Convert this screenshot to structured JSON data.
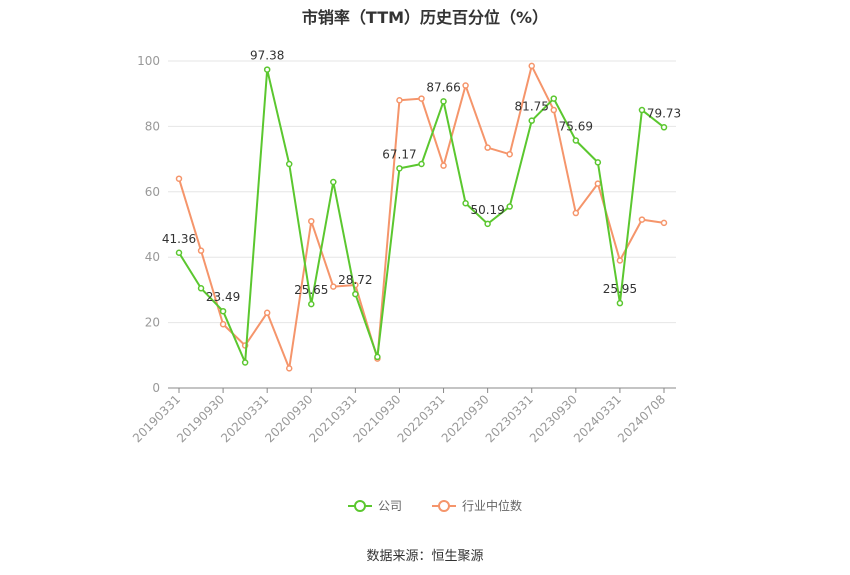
{
  "chart_data": {
    "type": "line",
    "title": "市销率（TTM）历史百分位（%）",
    "source": "数据来源：恒生聚源",
    "ylim": [
      0,
      100
    ],
    "yticks": [
      0,
      20,
      40,
      60,
      80,
      100
    ],
    "grid": true,
    "legend_position": "bottom",
    "x": [
      "20190331",
      "20190630",
      "20190930",
      "20191231",
      "20200331",
      "20200630",
      "20200930",
      "20201231",
      "20210331",
      "20210630",
      "20210930",
      "20211231",
      "20220331",
      "20220630",
      "20220930",
      "20221231",
      "20230331",
      "20230630",
      "20230930",
      "20231231",
      "20240331",
      "20240630",
      "20240708"
    ],
    "xtick_labels": [
      "20190331",
      "20190930",
      "20200331",
      "20200930",
      "20210331",
      "20210930",
      "20220331",
      "20220930",
      "20230331",
      "20230930",
      "20240331",
      "20240708"
    ],
    "series": [
      {
        "name": "公司",
        "color": "#5bc72f",
        "values": [
          41.36,
          30.5,
          23.49,
          7.8,
          97.38,
          68.5,
          25.65,
          63.0,
          28.72,
          9.5,
          67.17,
          68.5,
          87.66,
          56.5,
          50.19,
          55.5,
          81.75,
          88.5,
          75.69,
          69.0,
          25.95,
          85.0,
          79.73
        ],
        "labels": [
          "41.36",
          null,
          "23.49",
          null,
          "97.38",
          null,
          "25.65",
          null,
          "28.72",
          null,
          "67.17",
          null,
          "87.66",
          null,
          "50.19",
          null,
          "81.75",
          null,
          "75.69",
          null,
          "25.95",
          null,
          "79.73"
        ]
      },
      {
        "name": "行业中位数",
        "color": "#f5956b",
        "values": [
          64.0,
          42.0,
          19.5,
          13.0,
          23.0,
          6.0,
          51.0,
          31.0,
          31.5,
          9.0,
          88.0,
          88.5,
          68.0,
          92.5,
          73.5,
          71.5,
          98.5,
          85.0,
          53.5,
          62.5,
          39.0,
          51.5,
          50.5
        ]
      }
    ]
  }
}
